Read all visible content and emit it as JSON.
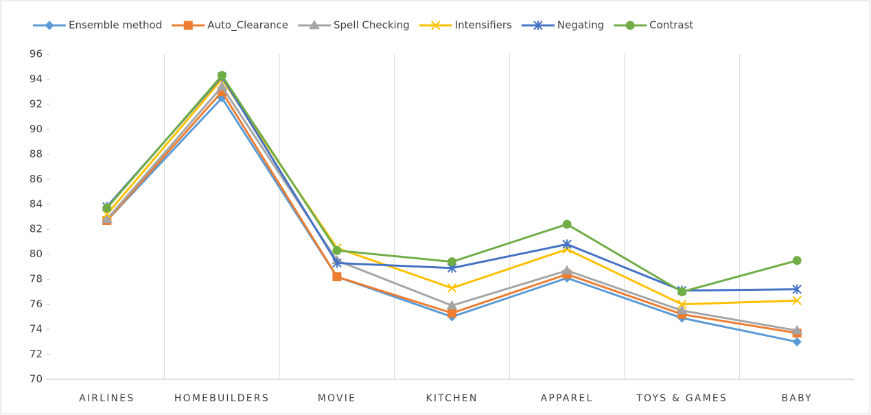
{
  "chart_data": {
    "type": "line",
    "categories": [
      "AIRLINES",
      "HOMEBUILDERS",
      "MOVIE",
      "KITCHEN",
      "APPAREL",
      "TOYS & GAMES",
      "BABY"
    ],
    "series": [
      {
        "name": "Ensemble method",
        "color": "#5b9bd5",
        "marker": "diamond",
        "values": [
          82.7,
          92.5,
          78.2,
          75.0,
          78.1,
          74.9,
          73.0
        ]
      },
      {
        "name": "Auto_Clearance",
        "color": "#ed7d31",
        "marker": "square",
        "values": [
          82.7,
          93.0,
          78.2,
          75.3,
          78.4,
          75.2,
          73.7
        ]
      },
      {
        "name": "Spell Checking",
        "color": "#a5a5a5",
        "marker": "triangle",
        "values": [
          82.8,
          93.4,
          79.5,
          75.9,
          78.7,
          75.5,
          73.9
        ]
      },
      {
        "name": "Intensifiers",
        "color": "#ffc000",
        "marker": "x",
        "values": [
          83.2,
          94.0,
          80.5,
          77.3,
          80.4,
          76.0,
          76.3
        ]
      },
      {
        "name": "Negating",
        "color": "#4472c4",
        "marker": "star",
        "values": [
          83.8,
          94.2,
          79.3,
          78.9,
          80.8,
          77.1,
          77.2
        ]
      },
      {
        "name": "Contrast",
        "color": "#70ad47",
        "marker": "circle",
        "values": [
          83.7,
          94.3,
          80.3,
          79.4,
          82.4,
          77.0,
          79.5
        ]
      }
    ],
    "ylim": [
      70,
      96
    ],
    "yticks": [
      70,
      72,
      74,
      76,
      78,
      80,
      82,
      84,
      86,
      88,
      90,
      92,
      94,
      96
    ],
    "legend": "top"
  }
}
